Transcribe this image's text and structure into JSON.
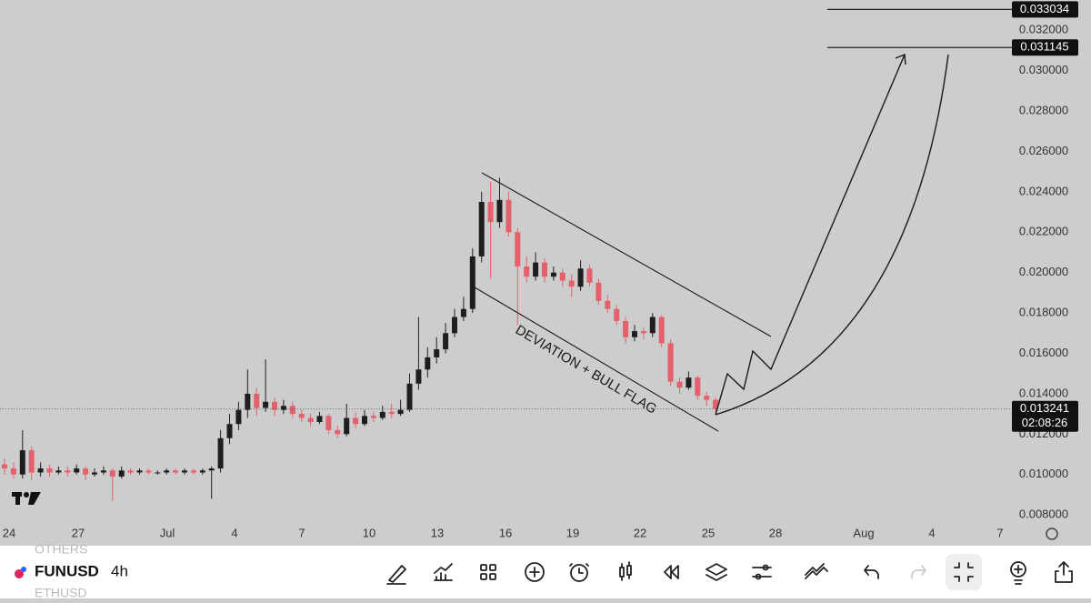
{
  "chart_data": {
    "type": "candlestick",
    "candles": [
      [
        0.0105,
        0.0108,
        0.01,
        0.0103
      ],
      [
        0.0103,
        0.0106,
        0.0098,
        0.01
      ],
      [
        0.01,
        0.0122,
        0.0098,
        0.0112
      ],
      [
        0.0112,
        0.0114,
        0.0097,
        0.0101
      ],
      [
        0.0101,
        0.0106,
        0.0099,
        0.0103
      ],
      [
        0.0103,
        0.0105,
        0.0099,
        0.0101
      ],
      [
        0.0101,
        0.0104,
        0.01,
        0.0102
      ],
      [
        0.0102,
        0.0104,
        0.0099,
        0.0101
      ],
      [
        0.0101,
        0.0105,
        0.01,
        0.0103
      ],
      [
        0.0103,
        0.0104,
        0.0097,
        0.01
      ],
      [
        0.01,
        0.0103,
        0.0099,
        0.0101
      ],
      [
        0.0101,
        0.0104,
        0.01,
        0.0102
      ],
      [
        0.0102,
        0.0103,
        0.0087,
        0.0099
      ],
      [
        0.0099,
        0.0104,
        0.0098,
        0.0102
      ],
      [
        0.0102,
        0.0103,
        0.01,
        0.0101
      ],
      [
        0.0101,
        0.0103,
        0.01,
        0.0102
      ],
      [
        0.0102,
        0.0103,
        0.01,
        0.0101
      ],
      [
        0.0101,
        0.0102,
        0.01,
        0.0101
      ],
      [
        0.0101,
        0.0103,
        0.01,
        0.0102
      ],
      [
        0.0102,
        0.0103,
        0.01,
        0.0101
      ],
      [
        0.0101,
        0.0103,
        0.01,
        0.0102
      ],
      [
        0.0102,
        0.0103,
        0.01,
        0.0101
      ],
      [
        0.0101,
        0.0103,
        0.01,
        0.0102
      ],
      [
        0.0102,
        0.0104,
        0.0088,
        0.0103
      ],
      [
        0.0103,
        0.0122,
        0.0101,
        0.0118
      ],
      [
        0.0118,
        0.013,
        0.0115,
        0.0125
      ],
      [
        0.0125,
        0.0136,
        0.0122,
        0.0132
      ],
      [
        0.0132,
        0.0152,
        0.0128,
        0.014
      ],
      [
        0.014,
        0.0143,
        0.0129,
        0.0133
      ],
      [
        0.0133,
        0.0157,
        0.0131,
        0.0136
      ],
      [
        0.0136,
        0.0138,
        0.0129,
        0.0132
      ],
      [
        0.0132,
        0.0137,
        0.013,
        0.0134
      ],
      [
        0.0134,
        0.0136,
        0.0128,
        0.013
      ],
      [
        0.013,
        0.0132,
        0.0126,
        0.0128
      ],
      [
        0.0128,
        0.013,
        0.0124,
        0.0126
      ],
      [
        0.0126,
        0.0131,
        0.0125,
        0.0129
      ],
      [
        0.0129,
        0.013,
        0.012,
        0.0122
      ],
      [
        0.0122,
        0.0124,
        0.0118,
        0.012
      ],
      [
        0.012,
        0.0135,
        0.0119,
        0.0128
      ],
      [
        0.0128,
        0.0131,
        0.0123,
        0.0125
      ],
      [
        0.0125,
        0.0132,
        0.0124,
        0.0129
      ],
      [
        0.0129,
        0.0131,
        0.0126,
        0.0128
      ],
      [
        0.0128,
        0.0134,
        0.0127,
        0.0131
      ],
      [
        0.0131,
        0.0135,
        0.0128,
        0.013
      ],
      [
        0.013,
        0.0137,
        0.0129,
        0.0132
      ],
      [
        0.0132,
        0.015,
        0.0131,
        0.0145
      ],
      [
        0.0145,
        0.0178,
        0.0142,
        0.0152
      ],
      [
        0.0152,
        0.0163,
        0.0148,
        0.0158
      ],
      [
        0.0158,
        0.0168,
        0.0155,
        0.0162
      ],
      [
        0.0162,
        0.0175,
        0.016,
        0.017
      ],
      [
        0.017,
        0.0182,
        0.0168,
        0.0178
      ],
      [
        0.0178,
        0.0188,
        0.0176,
        0.0182
      ],
      [
        0.0182,
        0.0212,
        0.018,
        0.0208
      ],
      [
        0.0208,
        0.024,
        0.0205,
        0.0235
      ],
      [
        0.0235,
        0.0245,
        0.0197,
        0.0225
      ],
      [
        0.0225,
        0.0247,
        0.0222,
        0.0236
      ],
      [
        0.0236,
        0.024,
        0.0218,
        0.022
      ],
      [
        0.022,
        0.0222,
        0.0174,
        0.0203
      ],
      [
        0.0203,
        0.0208,
        0.0195,
        0.0198
      ],
      [
        0.0198,
        0.021,
        0.0196,
        0.0205
      ],
      [
        0.0205,
        0.0207,
        0.0195,
        0.0198
      ],
      [
        0.0198,
        0.0203,
        0.0196,
        0.02
      ],
      [
        0.02,
        0.0202,
        0.0193,
        0.0196
      ],
      [
        0.0196,
        0.0199,
        0.0188,
        0.0193
      ],
      [
        0.0193,
        0.0206,
        0.0191,
        0.0202
      ],
      [
        0.0202,
        0.0204,
        0.0193,
        0.0195
      ],
      [
        0.0195,
        0.0197,
        0.0184,
        0.0186
      ],
      [
        0.0186,
        0.0189,
        0.018,
        0.0182
      ],
      [
        0.0182,
        0.0184,
        0.0174,
        0.0176
      ],
      [
        0.0176,
        0.0178,
        0.0165,
        0.0168
      ],
      [
        0.0168,
        0.0174,
        0.0166,
        0.0171
      ],
      [
        0.0171,
        0.0173,
        0.0167,
        0.017
      ],
      [
        0.017,
        0.018,
        0.0168,
        0.0178
      ],
      [
        0.0178,
        0.0179,
        0.0163,
        0.0165
      ],
      [
        0.0165,
        0.0167,
        0.0144,
        0.0146
      ],
      [
        0.0146,
        0.0148,
        0.014,
        0.0143
      ],
      [
        0.0143,
        0.0151,
        0.0142,
        0.0148
      ],
      [
        0.0148,
        0.0149,
        0.0137,
        0.0139
      ],
      [
        0.0139,
        0.0141,
        0.0134,
        0.0137
      ],
      [
        0.0137,
        0.0138,
        0.0131,
        0.01324
      ]
    ],
    "up_color": "#1e1e1e",
    "down_color": "#e4606a",
    "ylim": [
      0.0076,
      0.0335
    ],
    "yticks": [
      {
        "value": 0.008,
        "label": "0.008000"
      },
      {
        "value": 0.01,
        "label": "0.010000"
      },
      {
        "value": 0.012,
        "label": "0.012000"
      },
      {
        "value": 0.014,
        "label": "0.014000"
      },
      {
        "value": 0.016,
        "label": "0.016000"
      },
      {
        "value": 0.018,
        "label": "0.018000"
      },
      {
        "value": 0.02,
        "label": "0.020000"
      },
      {
        "value": 0.022,
        "label": "0.022000"
      },
      {
        "value": 0.024,
        "label": "0.024000"
      },
      {
        "value": 0.026,
        "label": "0.026000"
      },
      {
        "value": 0.028,
        "label": "0.028000"
      },
      {
        "value": 0.03,
        "label": "0.030000"
      },
      {
        "value": 0.032,
        "label": "0.032000"
      }
    ],
    "xticks": [
      "24",
      "27",
      "Jul",
      "4",
      "7",
      "10",
      "13",
      "16",
      "19",
      "22",
      "25",
      "28",
      "Aug",
      "4",
      "7"
    ],
    "price_tags": [
      {
        "value": 0.033034,
        "label": "0.033034"
      },
      {
        "value": 0.031145,
        "label": "0.031145"
      }
    ],
    "last_price": {
      "value": 0.013241,
      "label": "0.013241",
      "countdown": "02:08:26"
    },
    "annotation": "DEVIATION + BULL FLAG"
  },
  "toolbar": {
    "symbol": "FUNUSD",
    "interval": "4h",
    "watchlist_above": "OTHERS",
    "watchlist_below": "ETHUSD"
  }
}
